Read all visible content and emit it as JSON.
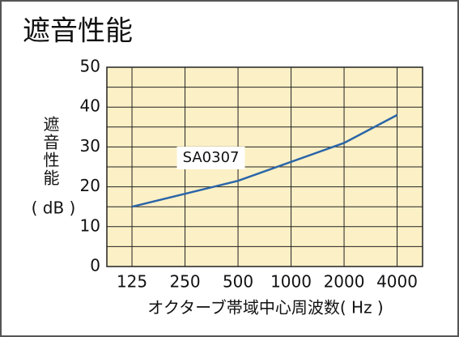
{
  "chart_data": {
    "type": "line",
    "title": "遮音性能",
    "y_label": "遮音性能",
    "y_unit": "( dB )",
    "x_label": "オクターブ帯域中心周波数( Hz )",
    "x": [
      125,
      500,
      2000,
      4000
    ],
    "series": [
      {
        "name": "SA0307",
        "color": "#2a65a8",
        "values": [
          15,
          21.5,
          31,
          38
        ]
      }
    ],
    "xscale": "log",
    "xlim": [
      90,
      5580
    ],
    "xticks": [
      125,
      250,
      500,
      1000,
      2000,
      4000
    ],
    "ylim": [
      0,
      50
    ],
    "yticks": [
      0,
      10,
      20,
      30,
      40,
      50
    ],
    "grid": true
  }
}
